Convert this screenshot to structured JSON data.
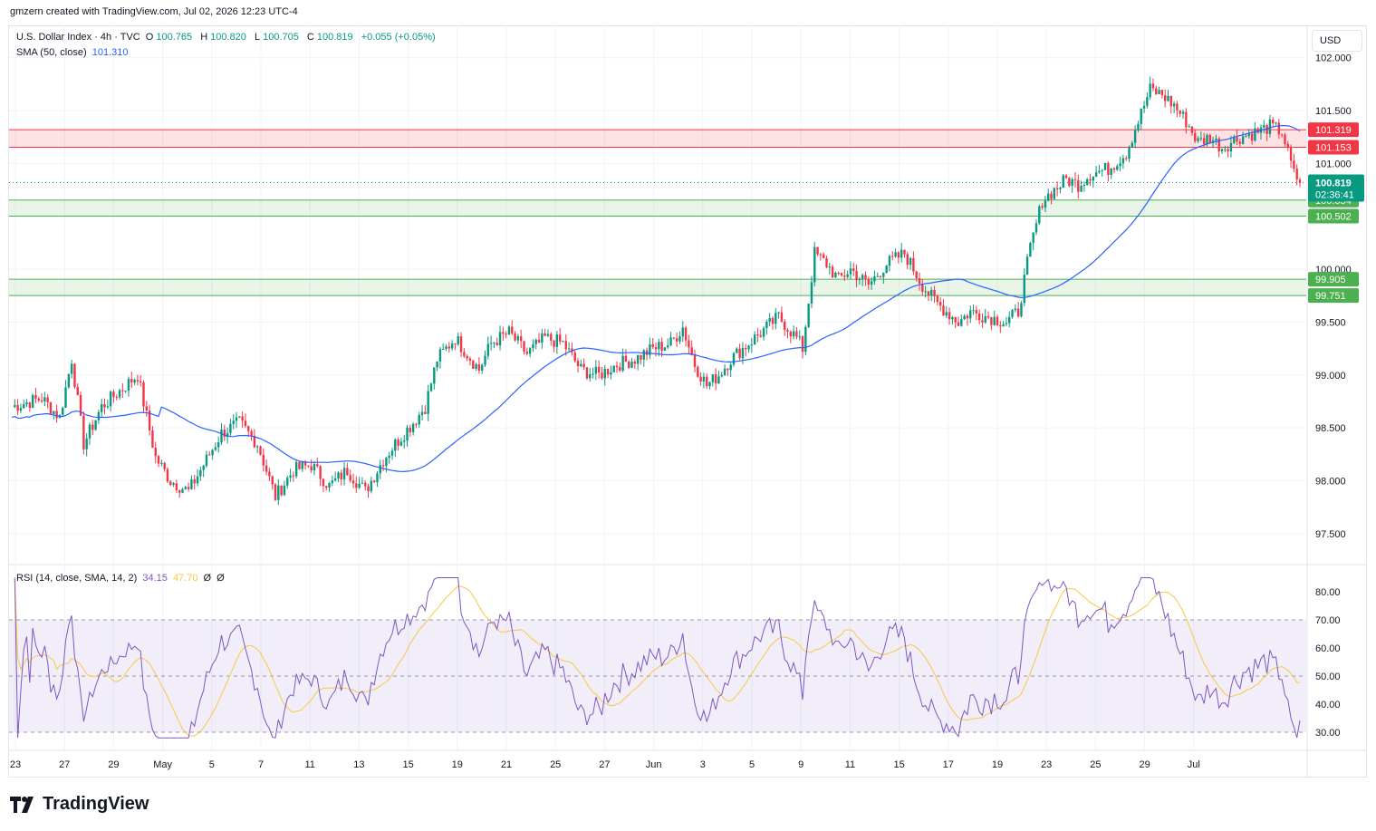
{
  "watermark": "gmzern created with TradingView.com, Jul 02, 2026 12:23 UTC-4",
  "currency_button": "USD",
  "logo_text": "TradingView",
  "legend": {
    "symbol": "U.S. Dollar Index · 4h · TVC",
    "open_label": "O",
    "open": "100.765",
    "high_label": "H",
    "high": "100.820",
    "low_label": "L",
    "low": "100.705",
    "close_label": "C",
    "close": "100.819",
    "change": "+0.055 (+0.05%)",
    "sma_label": "SMA (50, close)",
    "sma_value": "101.310",
    "rsi_label": "RSI (14, close, SMA, 14, 2)",
    "rsi_value": "34.15",
    "rsi_ma": "47.70",
    "rsi_extra1": "Ø",
    "rsi_extra2": "Ø"
  },
  "colors": {
    "up": "#089981",
    "down": "#f23645",
    "sma": "#2962ff",
    "rsi": "#7e57c2",
    "rsi_ma": "#f7c844",
    "resistance": "#f23645",
    "support": "#4caf50"
  },
  "chart_data": {
    "type": "candlestick",
    "timeframe": "4h",
    "price_axis": {
      "ticks": [
        "97.500",
        "98.000",
        "98.500",
        "99.000",
        "99.500",
        "100.000",
        "100.500",
        "101.000",
        "101.500",
        "102.000"
      ]
    },
    "x_tick_labels": [
      "23",
      "27",
      "29",
      "May",
      "5",
      "7",
      "11",
      "13",
      "15",
      "19",
      "21",
      "25",
      "27",
      "Jun",
      "3",
      "5",
      "9",
      "11",
      "15",
      "17",
      "19",
      "23",
      "25",
      "29",
      "Jul"
    ],
    "zones": [
      {
        "type": "resistance",
        "top": 101.319,
        "bottom": 101.153,
        "top_label": "101.319",
        "bottom_label": "101.153"
      },
      {
        "type": "support",
        "top": 100.654,
        "bottom": 100.502,
        "top_label": "100.654",
        "bottom_label": "100.502"
      },
      {
        "type": "support",
        "top": 99.905,
        "bottom": 99.751,
        "top_label": "99.905",
        "bottom_label": "99.751"
      }
    ],
    "last_price": {
      "value": 100.819,
      "label": "100.819",
      "countdown": "02:36:41"
    },
    "price_path": [
      [
        0,
        98.7
      ],
      [
        10,
        98.78
      ],
      [
        16,
        98.6
      ],
      [
        20,
        99.15
      ],
      [
        24,
        98.35
      ],
      [
        30,
        98.7
      ],
      [
        36,
        98.85
      ],
      [
        42,
        99.0
      ],
      [
        48,
        98.22
      ],
      [
        53,
        98.0
      ],
      [
        59,
        97.9
      ],
      [
        64,
        98.15
      ],
      [
        70,
        98.45
      ],
      [
        76,
        98.55
      ],
      [
        82,
        98.35
      ],
      [
        88,
        97.85
      ],
      [
        94,
        98.1
      ],
      [
        100,
        98.15
      ],
      [
        106,
        97.95
      ],
      [
        112,
        98.1
      ],
      [
        118,
        97.9
      ],
      [
        124,
        98.2
      ],
      [
        128,
        98.35
      ],
      [
        134,
        98.55
      ],
      [
        138,
        98.7
      ],
      [
        142,
        99.15
      ],
      [
        148,
        99.35
      ],
      [
        152,
        99.2
      ],
      [
        156,
        99.05
      ],
      [
        160,
        99.3
      ],
      [
        166,
        99.4
      ],
      [
        172,
        99.2
      ],
      [
        178,
        99.35
      ],
      [
        184,
        99.3
      ],
      [
        190,
        99.05
      ],
      [
        196,
        99.0
      ],
      [
        202,
        99.1
      ],
      [
        208,
        99.15
      ],
      [
        214,
        99.25
      ],
      [
        220,
        99.3
      ],
      [
        224,
        99.45
      ],
      [
        228,
        99.1
      ],
      [
        232,
        98.9
      ],
      [
        236,
        99.0
      ],
      [
        240,
        99.15
      ],
      [
        246,
        99.3
      ],
      [
        252,
        99.45
      ],
      [
        256,
        99.55
      ],
      [
        262,
        99.35
      ],
      [
        264,
        99.25
      ],
      [
        268,
        100.15
      ],
      [
        272,
        100.05
      ],
      [
        276,
        99.9
      ],
      [
        280,
        100.0
      ],
      [
        286,
        99.85
      ],
      [
        292,
        100.05
      ],
      [
        298,
        100.15
      ],
      [
        304,
        99.85
      ],
      [
        308,
        99.7
      ],
      [
        312,
        99.6
      ],
      [
        316,
        99.5
      ],
      [
        320,
        99.6
      ],
      [
        326,
        99.55
      ],
      [
        332,
        99.5
      ],
      [
        336,
        99.6
      ],
      [
        340,
        100.2
      ],
      [
        344,
        100.65
      ],
      [
        348,
        100.75
      ],
      [
        352,
        100.85
      ],
      [
        356,
        100.8
      ],
      [
        360,
        100.9
      ],
      [
        366,
        100.95
      ],
      [
        372,
        101.1
      ],
      [
        376,
        101.4
      ],
      [
        380,
        101.7
      ],
      [
        384,
        101.65
      ],
      [
        388,
        101.55
      ],
      [
        392,
        101.4
      ],
      [
        396,
        101.2
      ],
      [
        400,
        101.25
      ],
      [
        404,
        101.15
      ],
      [
        410,
        101.25
      ],
      [
        416,
        101.3
      ],
      [
        420,
        101.35
      ],
      [
        424,
        101.3
      ],
      [
        428,
        100.9
      ],
      [
        430,
        100.82
      ]
    ],
    "sma": {
      "name": "SMA (50, close)",
      "value": 101.31
    },
    "rsi": {
      "name": "RSI (14, close, SMA, 14, 2)",
      "ticks": [
        "30.00",
        "40.00",
        "50.00",
        "60.00",
        "70.00",
        "80.00"
      ],
      "band_top": 70,
      "band_mid": 50,
      "band_bottom": 30,
      "last": 34.15,
      "ma_last": 47.7
    }
  }
}
